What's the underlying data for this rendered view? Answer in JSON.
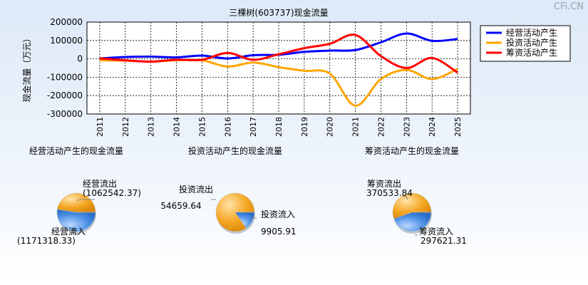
{
  "watermark": "CFi.CN",
  "chart_data": [
    {
      "type": "line",
      "title": "三棵树(603737)现金流量",
      "ylabel": "现金流量（万元）",
      "x": [
        "2011",
        "2012",
        "2013",
        "2014",
        "2015",
        "2016",
        "2017",
        "2018",
        "2019",
        "2020",
        "2021",
        "2022",
        "2023",
        "2024",
        "2025"
      ],
      "ylim": [
        -300000,
        200000
      ],
      "yticks": [
        200000,
        100000,
        0,
        -100000,
        -200000,
        -300000
      ],
      "ytick_labels": [
        "200000",
        "100000",
        "0",
        "-100000",
        "-200000",
        "-300000"
      ],
      "grid": true,
      "legend": "top-right",
      "series": [
        {
          "name": "经营活动产生",
          "color": "#0000ff",
          "values": [
            2000,
            10000,
            12000,
            8000,
            18000,
            2000,
            20000,
            22000,
            38000,
            45000,
            48000,
            90000,
            138000,
            98000,
            108000
          ]
        },
        {
          "name": "投资活动产生",
          "color": "#ffa500",
          "values": [
            -8000,
            -10000,
            -15000,
            -8000,
            -8000,
            -42000,
            -20000,
            -45000,
            -65000,
            -80000,
            -255000,
            -110000,
            -60000,
            -110000,
            -55000
          ]
        },
        {
          "name": "筹资活动产生",
          "color": "#ff0000",
          "values": [
            3000,
            -8000,
            -15000,
            -5000,
            -5000,
            32000,
            -5000,
            25000,
            58000,
            82000,
            130000,
            15000,
            -50000,
            5000,
            -75000
          ]
        }
      ]
    },
    {
      "type": "pie",
      "title": "经营活动产生的现金流量",
      "slices": [
        {
          "label": "经营流出",
          "value_label": "(1062542.37)",
          "value": 1062542.37,
          "color": "#f5a623"
        },
        {
          "label": "经营流入",
          "value_label": "(1171318.33)",
          "value": 1171318.33,
          "color": "#4d90e6"
        }
      ]
    },
    {
      "type": "pie",
      "title": "投资活动产生的现金流量",
      "slices": [
        {
          "label": "投资流出",
          "value_label": "54659.64",
          "value": 54659.64,
          "color": "#f5a623"
        },
        {
          "label": "投资流入",
          "value_label": "9905.91",
          "value": 9905.91,
          "color": "#4d90e6"
        }
      ]
    },
    {
      "type": "pie",
      "title": "筹资活动产生的现金流量",
      "slices": [
        {
          "label": "筹资流出",
          "value_label": "370533.84",
          "value": 370533.84,
          "color": "#f5a623"
        },
        {
          "label": "筹资流入",
          "value_label": "297621.31",
          "value": 297621.31,
          "color": "#4d90e6"
        }
      ]
    }
  ]
}
